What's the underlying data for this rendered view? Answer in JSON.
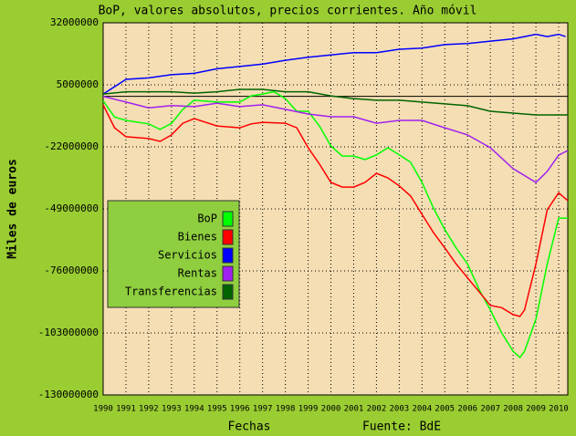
{
  "chart_data": {
    "type": "line",
    "title": "BoP, valores absolutos, precios corrientes. Año móvil",
    "y_label": "Miles de euros",
    "x_label": "Fechas",
    "source": "Fuente: BdE",
    "xlim": [
      1990,
      2010.4
    ],
    "xticks": [
      1990,
      1991,
      1992,
      1993,
      1994,
      1995,
      1996,
      1997,
      1998,
      1999,
      2000,
      2001,
      2002,
      2003,
      2004,
      2005,
      2006,
      2007,
      2008,
      2009,
      2010
    ],
    "ylim": [
      -130000000,
      32000000
    ],
    "yticks": [
      32000000,
      5000000,
      -22000000,
      -49000000,
      -76000000,
      -103000000,
      -130000000
    ],
    "grid": true,
    "series": [
      {
        "name": "BoP",
        "color": "#00ff00",
        "x": [
          1990,
          1990.5,
          1991,
          1992,
          1992.5,
          1993,
          1993.5,
          1994,
          1995,
          1996,
          1996.5,
          1997,
          1997.5,
          1998,
          1998.5,
          1999,
          1999.5,
          2000,
          2000.5,
          2001,
          2001.5,
          2002,
          2002.5,
          2003,
          2003.5,
          2004,
          2004.5,
          2005,
          2005.5,
          2006,
          2006.5,
          2007,
          2007.5,
          2008,
          2008.3,
          2008.5,
          2009,
          2009.5,
          2010,
          2010.4
        ],
        "values": [
          -2000000,
          -9000000,
          -10500000,
          -12000000,
          -14400000,
          -11700000,
          -5700000,
          -1700000,
          -2500000,
          -2500000,
          200000,
          1000000,
          2000000,
          -1000000,
          -6500000,
          -6500000,
          -13000000,
          -21600000,
          -26000000,
          -26000000,
          -27500000,
          -25500000,
          -22400000,
          -25500000,
          -28700000,
          -37500000,
          -48600000,
          -58000000,
          -66000000,
          -73000000,
          -84000000,
          -93000000,
          -103000000,
          -111000000,
          -113700000,
          -111000000,
          -97000000,
          -73000000,
          -53000000,
          -53000000
        ]
      },
      {
        "name": "Bienes",
        "color": "#ff0000",
        "x": [
          1990,
          1990.5,
          1991,
          1992,
          1992.5,
          1993,
          1993.5,
          1994,
          1995,
          1996,
          1996.5,
          1997,
          1998,
          1998.5,
          1999,
          1999.5,
          2000,
          2000.5,
          2001,
          2001.5,
          2002,
          2002.5,
          2003,
          2003.5,
          2004,
          2004.5,
          2005,
          2005.5,
          2006,
          2006.5,
          2007,
          2007.5,
          2008,
          2008.3,
          2008.5,
          2009,
          2009.5,
          2010,
          2010.4
        ],
        "values": [
          -3700000,
          -13700000,
          -17600000,
          -18400000,
          -19600000,
          -16800000,
          -11700000,
          -9700000,
          -12900000,
          -13700000,
          -12000000,
          -11300000,
          -11700000,
          -13700000,
          -22400000,
          -29500000,
          -37500000,
          -39500000,
          -39500000,
          -37500000,
          -33500000,
          -35500000,
          -39000000,
          -43400000,
          -51400000,
          -59300000,
          -66000000,
          -73000000,
          -79000000,
          -85000000,
          -91000000,
          -92000000,
          -95000000,
          -95800000,
          -93000000,
          -73000000,
          -49400000,
          -42000000,
          -45400000
        ]
      },
      {
        "name": "Servicios",
        "color": "#0000ff",
        "x": [
          1990,
          1991,
          1992,
          1993,
          1994,
          1995,
          1996,
          1997,
          1998,
          1999,
          2000,
          2001,
          2002,
          2003,
          2004,
          2005,
          2006,
          2007,
          2008,
          2009,
          2009.5,
          2010,
          2010.3
        ],
        "values": [
          1000000,
          7400000,
          8000000,
          9400000,
          10000000,
          12000000,
          13000000,
          14000000,
          15700000,
          17000000,
          18000000,
          19000000,
          19000000,
          20500000,
          21000000,
          22500000,
          23000000,
          24000000,
          25000000,
          27000000,
          26000000,
          27000000,
          26000000
        ]
      },
      {
        "name": "Rentas",
        "color": "#a020f0",
        "x": [
          1990,
          1991,
          1992,
          1993,
          1994,
          1995,
          1996,
          1997,
          1998,
          1999,
          2000,
          2001,
          2002,
          2003,
          2004,
          2005,
          2006,
          2007,
          2008,
          2009,
          2009.5,
          2010,
          2010.4
        ],
        "values": [
          0,
          -2500000,
          -5000000,
          -4000000,
          -4500000,
          -3000000,
          -4500000,
          -3700000,
          -5700000,
          -7700000,
          -8900000,
          -8900000,
          -11700000,
          -10500000,
          -10500000,
          -13700000,
          -16800000,
          -22400000,
          -31500000,
          -37500000,
          -32700000,
          -25600000,
          -23600000
        ]
      },
      {
        "name": "Transferencias",
        "color": "#006400",
        "x": [
          1990,
          1991,
          1992,
          1993,
          1994,
          1995,
          1996,
          1997,
          1998,
          1999,
          2000,
          2001,
          2002,
          2003,
          2004,
          2005,
          2006,
          2007,
          2008,
          2009,
          2010,
          2010.4
        ],
        "values": [
          1000000,
          2000000,
          2000000,
          2000000,
          1400000,
          2000000,
          3000000,
          3000000,
          2000000,
          2000000,
          200000,
          -1000000,
          -1700000,
          -1700000,
          -2500000,
          -3300000,
          -4100000,
          -6500000,
          -7300000,
          -8100000,
          -8100000,
          -8100000
        ]
      }
    ]
  }
}
